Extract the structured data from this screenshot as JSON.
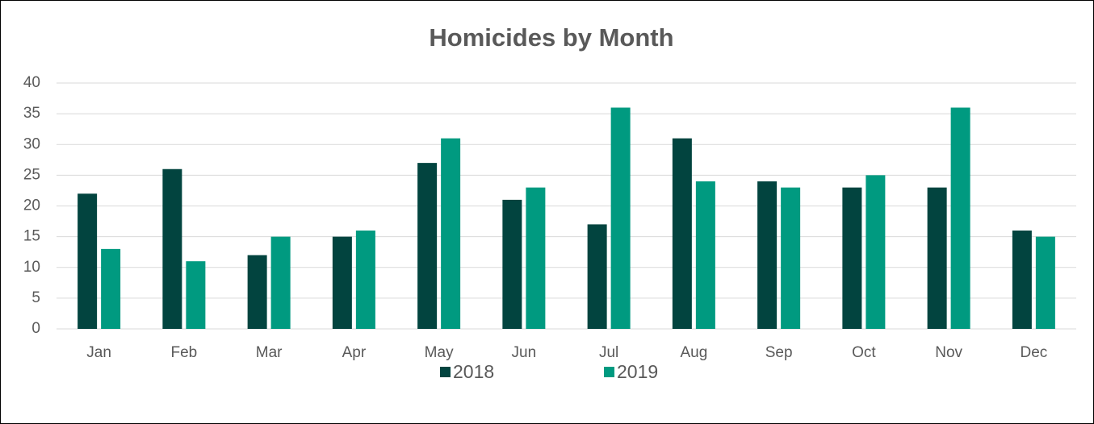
{
  "chart_data": {
    "type": "bar",
    "title": "Homicides by Month",
    "categories": [
      "Jan",
      "Feb",
      "Mar",
      "Apr",
      "May",
      "Jun",
      "Jul",
      "Aug",
      "Sep",
      "Oct",
      "Nov",
      "Dec"
    ],
    "series": [
      {
        "name": "2018",
        "color": "#02443f",
        "values": [
          22,
          26,
          12,
          15,
          27,
          21,
          17,
          31,
          24,
          23,
          23,
          16
        ]
      },
      {
        "name": "2019",
        "color": "#009a80",
        "values": [
          13,
          11,
          15,
          16,
          31,
          23,
          36,
          24,
          23,
          25,
          36,
          15
        ]
      }
    ],
    "ylim": [
      0,
      40
    ],
    "yticks": [
      0,
      5,
      10,
      15,
      20,
      25,
      30,
      35,
      40
    ],
    "grid": true,
    "legend": "bottom"
  }
}
